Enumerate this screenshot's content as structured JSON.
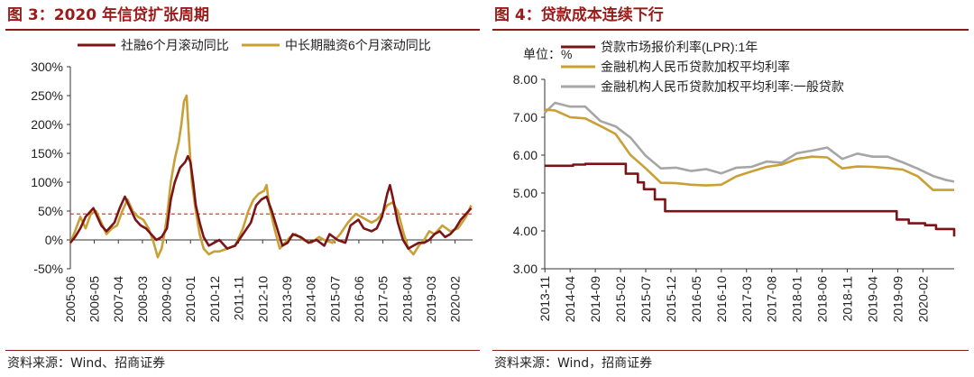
{
  "colors": {
    "title": "#9b1b1b",
    "dark_red": "#7b1416",
    "gold": "#c8a035",
    "gray": "#a6a6a6",
    "ref_line": "#e2231a"
  },
  "left": {
    "title": "图 3：2020 年信贷扩张周期",
    "source": "资料来源：Wind、招商证券"
  },
  "right": {
    "title": "图 4：贷款成本连续下行",
    "source": "资料来源：Wind，招商证券",
    "unit_label": "单位：%"
  },
  "chart_data": [
    {
      "type": "line",
      "title": "2020 年信贷扩张周期",
      "ylim": [
        -50,
        300
      ],
      "yticks": [
        "-50%",
        "0%",
        "50%",
        "100%",
        "150%",
        "200%",
        "250%",
        "300%"
      ],
      "xticks": [
        "2005-06",
        "2006-05",
        "2007-04",
        "2008-03",
        "2009-02",
        "2010-01",
        "2010-12",
        "2011-11",
        "2012-10",
        "2013-09",
        "2014-08",
        "2015-07",
        "2016-06",
        "2017-05",
        "2018-04",
        "2019-03",
        "2020-02"
      ],
      "x_range": [
        2005.42,
        2020.75
      ],
      "reference_line": 45,
      "legend": [
        "社融6个月滚动同比",
        "中长期融资6个月滚动同比"
      ],
      "series": [
        {
          "name": "社融6个月滚动同比",
          "color_key": "dark_red",
          "x": [
            2005.42,
            2005.6,
            2005.8,
            2006.0,
            2006.2,
            2006.3,
            2006.4,
            2006.6,
            2006.8,
            2006.9,
            2007.1,
            2007.3,
            2007.5,
            2007.7,
            2007.9,
            2008.1,
            2008.3,
            2008.5,
            2008.7,
            2008.9,
            2009.1,
            2009.25,
            2009.4,
            2009.6,
            2009.8,
            2009.9,
            2010.0,
            2010.1,
            2010.2,
            2010.35,
            2010.5,
            2010.7,
            2010.9,
            2011.1,
            2011.4,
            2011.7,
            2012.0,
            2012.3,
            2012.5,
            2012.7,
            2012.9,
            2013.1,
            2013.3,
            2013.5,
            2013.7,
            2013.9,
            2014.2,
            2014.5,
            2014.8,
            2015.1,
            2015.3,
            2015.6,
            2015.9,
            2016.1,
            2016.4,
            2016.6,
            2016.9,
            2017.1,
            2017.3,
            2017.5,
            2017.6,
            2017.7,
            2017.9,
            2018.1,
            2018.3,
            2018.5,
            2018.7,
            2018.9,
            2019.1,
            2019.3,
            2019.5,
            2019.7,
            2019.9,
            2020.1,
            2020.3,
            2020.5,
            2020.7
          ],
          "values": [
            -5,
            5,
            20,
            40,
            50,
            55,
            45,
            25,
            15,
            20,
            30,
            55,
            75,
            55,
            35,
            25,
            20,
            10,
            0,
            5,
            20,
            70,
            100,
            125,
            135,
            145,
            135,
            100,
            60,
            30,
            5,
            -10,
            -5,
            0,
            -15,
            -10,
            10,
            30,
            60,
            70,
            75,
            50,
            20,
            -10,
            -5,
            10,
            5,
            -5,
            0,
            -10,
            10,
            0,
            -5,
            25,
            35,
            20,
            15,
            20,
            40,
            80,
            95,
            75,
            30,
            0,
            -15,
            -10,
            -5,
            -5,
            0,
            10,
            15,
            5,
            10,
            20,
            35,
            45,
            55
          ]
        },
        {
          "name": "中长期融资6个月滚动同比",
          "color_key": "gold",
          "x": [
            2005.42,
            2005.6,
            2005.8,
            2006.0,
            2006.2,
            2006.4,
            2006.6,
            2006.8,
            2007.0,
            2007.2,
            2007.4,
            2007.6,
            2007.8,
            2008.0,
            2008.2,
            2008.4,
            2008.6,
            2008.75,
            2008.9,
            2009.0,
            2009.1,
            2009.25,
            2009.4,
            2009.55,
            2009.65,
            2009.75,
            2009.85,
            2009.95,
            2010.05,
            2010.2,
            2010.35,
            2010.5,
            2010.7,
            2010.9,
            2011.1,
            2011.4,
            2011.7,
            2012.0,
            2012.2,
            2012.4,
            2012.6,
            2012.8,
            2012.9,
            2013.0,
            2013.2,
            2013.4,
            2013.6,
            2013.8,
            2014.0,
            2014.3,
            2014.6,
            2014.9,
            2015.1,
            2015.4,
            2015.7,
            2016.0,
            2016.3,
            2016.5,
            2016.7,
            2016.9,
            2017.1,
            2017.3,
            2017.5,
            2017.7,
            2017.9,
            2018.1,
            2018.3,
            2018.5,
            2018.7,
            2018.9,
            2019.1,
            2019.3,
            2019.6,
            2019.9,
            2020.2,
            2020.5,
            2020.7
          ],
          "values": [
            -5,
            15,
            40,
            20,
            45,
            50,
            30,
            10,
            20,
            25,
            50,
            70,
            50,
            40,
            35,
            20,
            -5,
            -30,
            -15,
            10,
            40,
            100,
            140,
            170,
            200,
            240,
            250,
            170,
            100,
            50,
            10,
            -15,
            -25,
            -20,
            -20,
            -15,
            -10,
            20,
            50,
            70,
            80,
            85,
            95,
            60,
            20,
            -15,
            -5,
            5,
            10,
            0,
            -5,
            5,
            0,
            -5,
            10,
            30,
            45,
            40,
            35,
            30,
            35,
            45,
            60,
            65,
            50,
            15,
            -15,
            -25,
            -10,
            0,
            15,
            10,
            25,
            15,
            20,
            40,
            60
          ]
        }
      ]
    },
    {
      "type": "line",
      "title": "贷款成本连续下行",
      "ylabel": "单位：%",
      "ylim": [
        3.0,
        8.0
      ],
      "yticks": [
        "3.00",
        "4.00",
        "5.00",
        "6.00",
        "7.00",
        "8.00"
      ],
      "xticks": [
        "2013-11",
        "2014-04",
        "2014-09",
        "2015-02",
        "2015-07",
        "2015-12",
        "2016-05",
        "2016-10",
        "2017-03",
        "2017-08",
        "2018-01",
        "2018-06",
        "2018-11",
        "2019-04",
        "2019-09",
        "2020-02"
      ],
      "x_range": [
        2013.83,
        2020.6
      ],
      "legend": [
        "贷款市场报价利率(LPR):1年",
        "金融机构人民币贷款加权平均利率",
        "金融机构人民币贷款加权平均利率:一般贷款"
      ],
      "series": [
        {
          "name": "贷款市场报价利率(LPR):1年",
          "color_key": "dark_red",
          "step": true,
          "x": [
            2013.83,
            2014.3,
            2014.5,
            2014.88,
            2015.17,
            2015.37,
            2015.47,
            2015.65,
            2015.82,
            2019.65,
            2019.85,
            2020.12,
            2020.3,
            2020.6
          ],
          "values": [
            5.72,
            5.75,
            5.77,
            5.77,
            5.51,
            5.28,
            5.1,
            4.83,
            4.52,
            4.3,
            4.2,
            4.15,
            4.05,
            3.85
          ]
        },
        {
          "name": "金融机构人民币贷款加权平均利率",
          "color_key": "gold",
          "x": [
            2013.83,
            2014.0,
            2014.25,
            2014.5,
            2014.75,
            2015.0,
            2015.25,
            2015.5,
            2015.75,
            2016.0,
            2016.25,
            2016.5,
            2016.75,
            2017.0,
            2017.25,
            2017.5,
            2017.75,
            2018.0,
            2018.25,
            2018.5,
            2018.75,
            2019.0,
            2019.25,
            2019.5,
            2019.75,
            2020.0,
            2020.25,
            2020.45,
            2020.6
          ],
          "values": [
            7.2,
            7.18,
            7.0,
            6.97,
            6.77,
            6.56,
            6.0,
            5.65,
            5.27,
            5.26,
            5.22,
            5.2,
            5.22,
            5.44,
            5.57,
            5.69,
            5.75,
            5.9,
            5.96,
            5.94,
            5.65,
            5.7,
            5.69,
            5.66,
            5.62,
            5.44,
            5.08,
            5.08,
            5.08
          ]
        },
        {
          "name": "金融机构人民币贷款加权平均利率:一般贷款",
          "color_key": "gray",
          "x": [
            2013.83,
            2014.0,
            2014.25,
            2014.5,
            2014.75,
            2015.0,
            2015.25,
            2015.5,
            2015.75,
            2016.0,
            2016.25,
            2016.5,
            2016.75,
            2017.0,
            2017.25,
            2017.5,
            2017.75,
            2018.0,
            2018.25,
            2018.5,
            2018.75,
            2019.0,
            2019.25,
            2019.5,
            2019.75,
            2020.0,
            2020.25,
            2020.45,
            2020.6
          ],
          "values": [
            7.12,
            7.38,
            7.28,
            7.28,
            6.9,
            6.76,
            6.46,
            5.98,
            5.65,
            5.67,
            5.58,
            5.63,
            5.52,
            5.67,
            5.69,
            5.83,
            5.8,
            6.05,
            6.12,
            6.2,
            5.9,
            6.04,
            5.96,
            5.96,
            5.81,
            5.64,
            5.45,
            5.35,
            5.3
          ]
        }
      ]
    }
  ]
}
